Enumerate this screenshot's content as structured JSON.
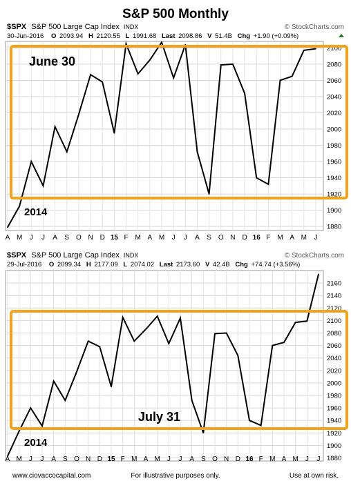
{
  "page": {
    "title": "S&P 500 Monthly",
    "footer_left": "www.ciovaccocapital.com",
    "footer_center": "For illustrative purposes only.",
    "footer_right": "Use at own risk."
  },
  "colors": {
    "accent": "#f4a21b",
    "line": "#000000",
    "grid": "#cccccc"
  },
  "charts": [
    {
      "symbol": "$SPX",
      "name": "S&P 500 Large Cap Index",
      "exchange": "INDX",
      "brand": "© StockCharts.com",
      "date": "30-Jun-2016",
      "quote": {
        "o_label": "O",
        "o": "2093.94",
        "h_label": "H",
        "h": "2120.55",
        "l_label": "L",
        "l": "1991.68",
        "last_label": "Last",
        "last": "2098.86",
        "v_label": "V",
        "v": "51.4B",
        "chg_label": "Chg",
        "chg": "+1.90 (+0.09%)"
      },
      "annotation": "June 30",
      "year_label": "2014"
    },
    {
      "symbol": "$SPX",
      "name": "S&P 500 Large Cap Index",
      "exchange": "INDX",
      "brand": "© StockCharts.com",
      "date": "29-Jul-2016",
      "quote": {
        "o_label": "O",
        "o": "2099.34",
        "h_label": "H",
        "h": "2177.09",
        "l_label": "L",
        "l": "2074.02",
        "last_label": "Last",
        "last": "2173.60",
        "v_label": "V",
        "v": "42.4B",
        "chg_label": "Chg",
        "chg": "+74.74 (+3.56%)"
      },
      "annotation": "July 31",
      "year_label": "2014"
    }
  ],
  "chart_data": [
    {
      "type": "line",
      "title": "S&P 500 Monthly",
      "x": [
        "A",
        "M",
        "J",
        "J",
        "A",
        "S",
        "O",
        "N",
        "D",
        "15",
        "F",
        "M",
        "A",
        "M",
        "J",
        "J",
        "A",
        "S",
        "O",
        "N",
        "D",
        "16",
        "F",
        "M",
        "A",
        "M",
        "J"
      ],
      "series": [
        {
          "values": [
            1879,
            1905,
            1960,
            1930,
            2003,
            1972,
            2018,
            2067,
            2058,
            1995,
            2105,
            2068,
            2085,
            2107,
            2063,
            2104,
            1972,
            1920,
            2079,
            2080,
            2044,
            1940,
            1932,
            2060,
            2065,
            2097,
            2099
          ]
        }
      ],
      "y_ticks": [
        1880,
        1900,
        1920,
        1940,
        1960,
        1980,
        2000,
        2020,
        2040,
        2060,
        2080,
        2100
      ],
      "ylim": [
        1875,
        2108
      ],
      "grid": true
    },
    {
      "type": "line",
      "title": "S&P 500 Monthly",
      "x": [
        "A",
        "M",
        "J",
        "J",
        "A",
        "S",
        "O",
        "N",
        "D",
        "15",
        "F",
        "M",
        "A",
        "M",
        "J",
        "J",
        "A",
        "S",
        "O",
        "N",
        "D",
        "16",
        "F",
        "M",
        "A",
        "M",
        "J",
        "J"
      ],
      "series": [
        {
          "values": [
            1883,
            1923,
            1960,
            1931,
            2003,
            1972,
            2018,
            2067,
            2058,
            1994,
            2105,
            2067,
            2086,
            2107,
            2063,
            2104,
            1972,
            1920,
            2079,
            2080,
            2044,
            1940,
            1932,
            2060,
            2065,
            2097,
            2099,
            2174
          ]
        }
      ],
      "y_ticks": [
        1880,
        1900,
        1920,
        1940,
        1960,
        1980,
        2000,
        2020,
        2040,
        2060,
        2080,
        2100,
        2120,
        2140,
        2160
      ],
      "y_tick_labels": [
        "1880",
        "1900",
        "1920",
        "1940",
        "1960",
        "1980",
        "2000",
        "2020",
        "2040",
        "2060",
        "2080",
        "2100",
        "2120",
        "2140",
        "2160"
      ],
      "ylim": [
        1875,
        2180
      ],
      "grid": true
    }
  ]
}
